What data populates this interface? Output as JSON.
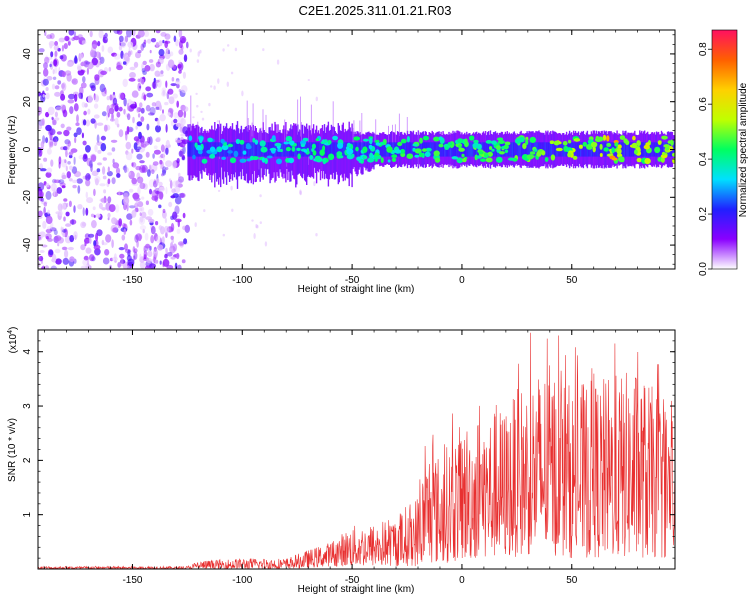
{
  "title": "C2E1.2025.311.01.21.R03",
  "chart_data": [
    {
      "type": "heatmap",
      "title": "C2E1.2025.311.01.21.R03",
      "xlabel": "Height of straight line (km)",
      "ylabel": "Frequency (Hz)",
      "xlim": [
        -193,
        97
      ],
      "ylim": [
        -50,
        50
      ],
      "xticks": [
        -150,
        -100,
        -50,
        0,
        50
      ],
      "yticks": [
        -40,
        -20,
        0,
        20,
        40
      ],
      "colorbar": {
        "label": "Normalized spectral amplitude",
        "range": [
          0,
          0.87
        ],
        "ticks": [
          0.0,
          0.2,
          0.4,
          0.6,
          0.8
        ],
        "colormap": [
          "#ffffff",
          "#8a00ff",
          "#2020ff",
          "#00e0ff",
          "#00ff60",
          "#c0ff00",
          "#ffd000",
          "#ff6000",
          "#ff1060"
        ]
      },
      "noise_region_km": [
        -193,
        -125
      ],
      "band_center_hz": 0,
      "band_halfwidth_hz": 6
    },
    {
      "type": "line",
      "xlabel": "Height of straight line (km)",
      "ylabel": "SNR (10 * v/v)",
      "multiplier": "(x10",
      "multiplier_exp": "4",
      "xlim": [
        -193,
        97
      ],
      "ylim": [
        0,
        4.4
      ],
      "xticks": [
        -150,
        -100,
        -50,
        0,
        50
      ],
      "yticks": [
        1,
        2,
        3,
        4
      ],
      "color": "#e83030",
      "envelope": {
        "x": [
          -193,
          -125,
          -120,
          -100,
          -80,
          -70,
          -60,
          -50,
          -40,
          -30,
          -20,
          -15,
          -10,
          0,
          10,
          20,
          30,
          40,
          50,
          60,
          70,
          80,
          90,
          97
        ],
        "upper": [
          0.05,
          0.05,
          0.15,
          0.2,
          0.2,
          0.35,
          0.5,
          0.8,
          0.85,
          1.0,
          1.4,
          2.3,
          2.1,
          2.7,
          2.9,
          3.0,
          3.6,
          3.8,
          3.4,
          3.5,
          3.6,
          3.7,
          3.2,
          2.9
        ],
        "lower": [
          0.0,
          0.0,
          0.0,
          0.0,
          0.0,
          0.02,
          0.05,
          0.05,
          0.05,
          0.05,
          0.05,
          0.1,
          0.1,
          0.15,
          0.2,
          0.2,
          0.25,
          0.25,
          0.2,
          0.2,
          0.2,
          0.2,
          0.2,
          0.2
        ]
      }
    }
  ]
}
